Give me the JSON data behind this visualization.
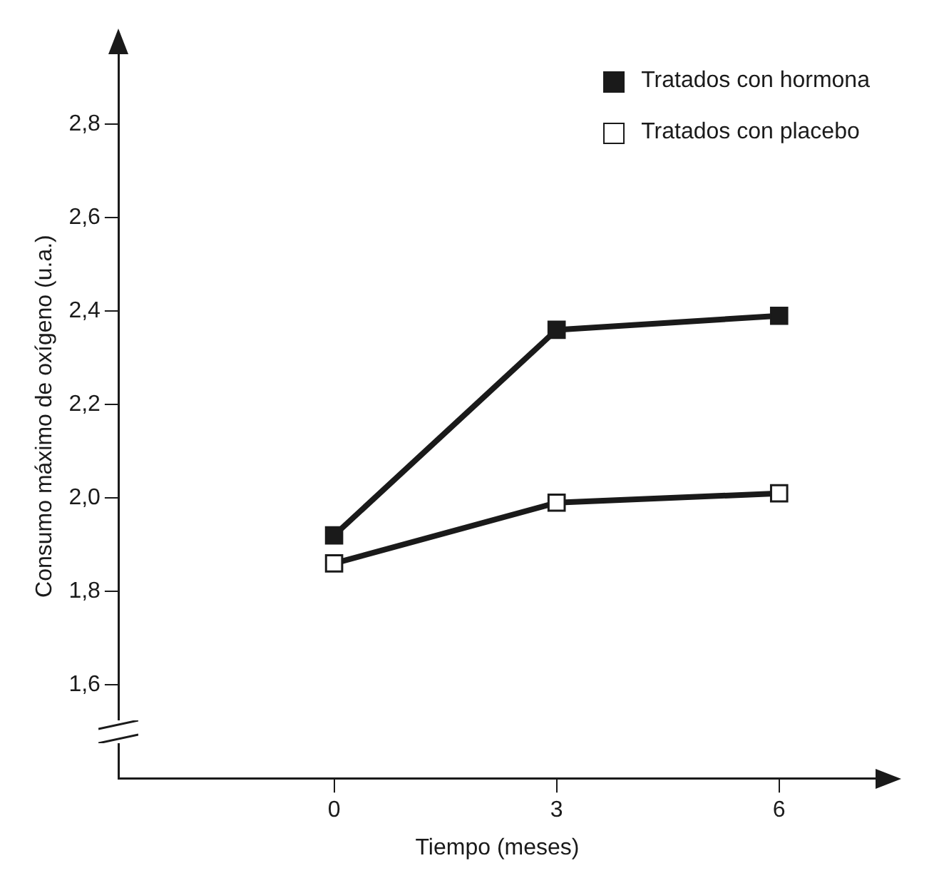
{
  "chart_data": {
    "type": "line",
    "xlabel": "Tiempo (meses)",
    "ylabel": "Consumo máximo de oxígeno (u.a.)",
    "x": [
      0,
      3,
      6
    ],
    "series": [
      {
        "name": "Tratados con hormona",
        "color": "#1a1a1a",
        "values": [
          1.92,
          2.36,
          2.39
        ]
      },
      {
        "name": "Tratados con placebo",
        "color": "#1a1a1a",
        "values": [
          1.86,
          1.99,
          2.01
        ]
      }
    ],
    "xlim": [
      -2.9,
      7.3
    ],
    "xticks": [
      0,
      3,
      6
    ],
    "ylim": [
      1.4,
      2.95
    ],
    "yticks": [
      {
        "value": 1.6,
        "label": "1,6"
      },
      {
        "value": 1.8,
        "label": "1,8"
      },
      {
        "value": 2.0,
        "label": "2,0"
      },
      {
        "value": 2.2,
        "label": "2,2"
      },
      {
        "value": 2.4,
        "label": "2,4"
      },
      {
        "value": 2.6,
        "label": "2,6"
      },
      {
        "value": 2.8,
        "label": "2,8"
      }
    ],
    "grid": false,
    "legend": "top right",
    "marker": "square",
    "line_style": "solid"
  }
}
